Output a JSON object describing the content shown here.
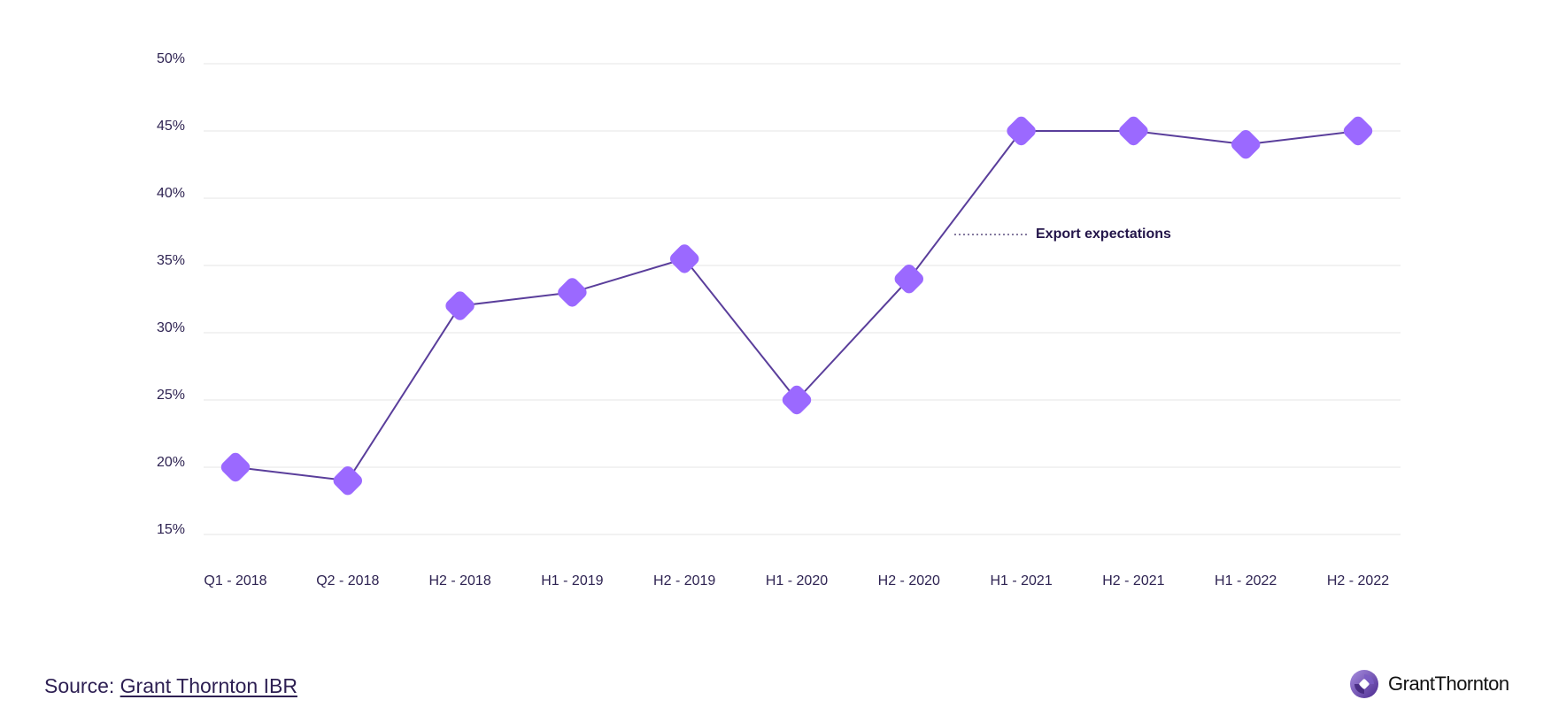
{
  "chart_data": {
    "type": "line",
    "title": "",
    "xlabel": "",
    "ylabel": "",
    "categories": [
      "Q1 - 2018",
      "Q2 - 2018",
      "H2 - 2018",
      "H1 - 2019",
      "H2 - 2019",
      "H1 - 2020",
      "H2 - 2020",
      "H1 - 2021",
      "H2 - 2021",
      "H1 - 2022",
      "H2 - 2022"
    ],
    "series": [
      {
        "name": "Export expectations",
        "values": [
          20,
          19,
          32,
          33,
          35.5,
          25,
          34,
          45,
          45,
          44,
          45
        ]
      }
    ],
    "ylim": [
      15,
      50
    ],
    "yticks": [
      "15%",
      "20%",
      "25%",
      "30%",
      "35%",
      "40%",
      "45%",
      "50%"
    ],
    "ytick_values": [
      15,
      20,
      25,
      30,
      35,
      40,
      45,
      50
    ],
    "grid": true,
    "legend": "none",
    "annotations": [
      {
        "text": "Export expectations",
        "points_to": "series line between H2 - 2020 and H1 - 2021"
      }
    ],
    "colors": {
      "line": "#5a3e9b",
      "marker": "#9b69ff",
      "grid": "#eeeeee",
      "text": "#2e2352"
    },
    "marker": "rounded-diamond"
  },
  "annotation": {
    "label": "Export expectations"
  },
  "footer": {
    "source_prefix": "Source: ",
    "source_link": "Grant Thornton IBR",
    "brand": "GrantThornton"
  }
}
